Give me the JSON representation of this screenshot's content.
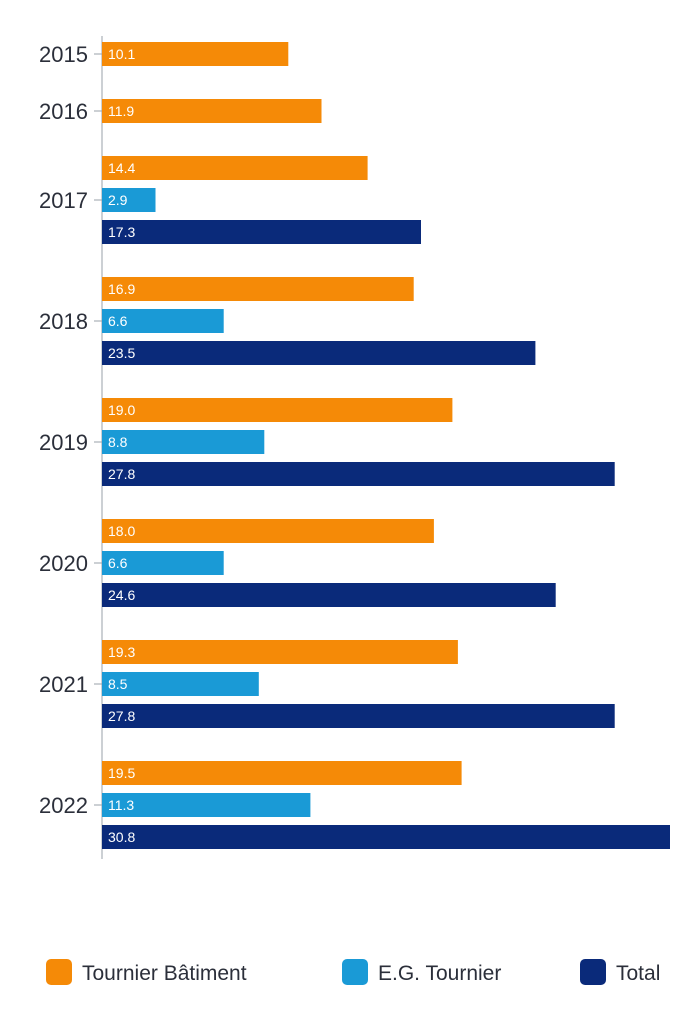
{
  "chart_data": {
    "type": "bar",
    "orientation": "horizontal",
    "categories": [
      "2015",
      "2016",
      "2017",
      "2018",
      "2019",
      "2020",
      "2021",
      "2022"
    ],
    "series": [
      {
        "name": "Tournier Bâtiment",
        "color": "#f58a07",
        "values": [
          10.1,
          11.9,
          14.4,
          16.9,
          19.0,
          18.0,
          19.3,
          19.5
        ],
        "labels": [
          "10.1",
          "11.9",
          "14.4",
          "16.9",
          "19.0",
          "18.0",
          "19.3",
          "19.5"
        ]
      },
      {
        "name": "E.G. Tournier",
        "color": "#1a9ad6",
        "values": [
          null,
          null,
          2.9,
          6.6,
          8.8,
          6.6,
          8.5,
          11.3
        ],
        "labels": [
          "",
          "",
          "2.9",
          "6.6",
          "8.8",
          "6.6",
          "8.5",
          "11.3"
        ]
      },
      {
        "name": "Total",
        "color": "#0a2a7a",
        "values": [
          null,
          null,
          17.3,
          23.5,
          27.8,
          24.6,
          27.8,
          30.8
        ],
        "labels": [
          "",
          "",
          "17.3",
          "23.5",
          "27.8",
          "24.6",
          "27.8",
          "30.8"
        ]
      }
    ],
    "title": "",
    "xlabel": "",
    "ylabel": "",
    "xlim": [
      0,
      30.8
    ],
    "grid": false,
    "legend": "bottom"
  }
}
